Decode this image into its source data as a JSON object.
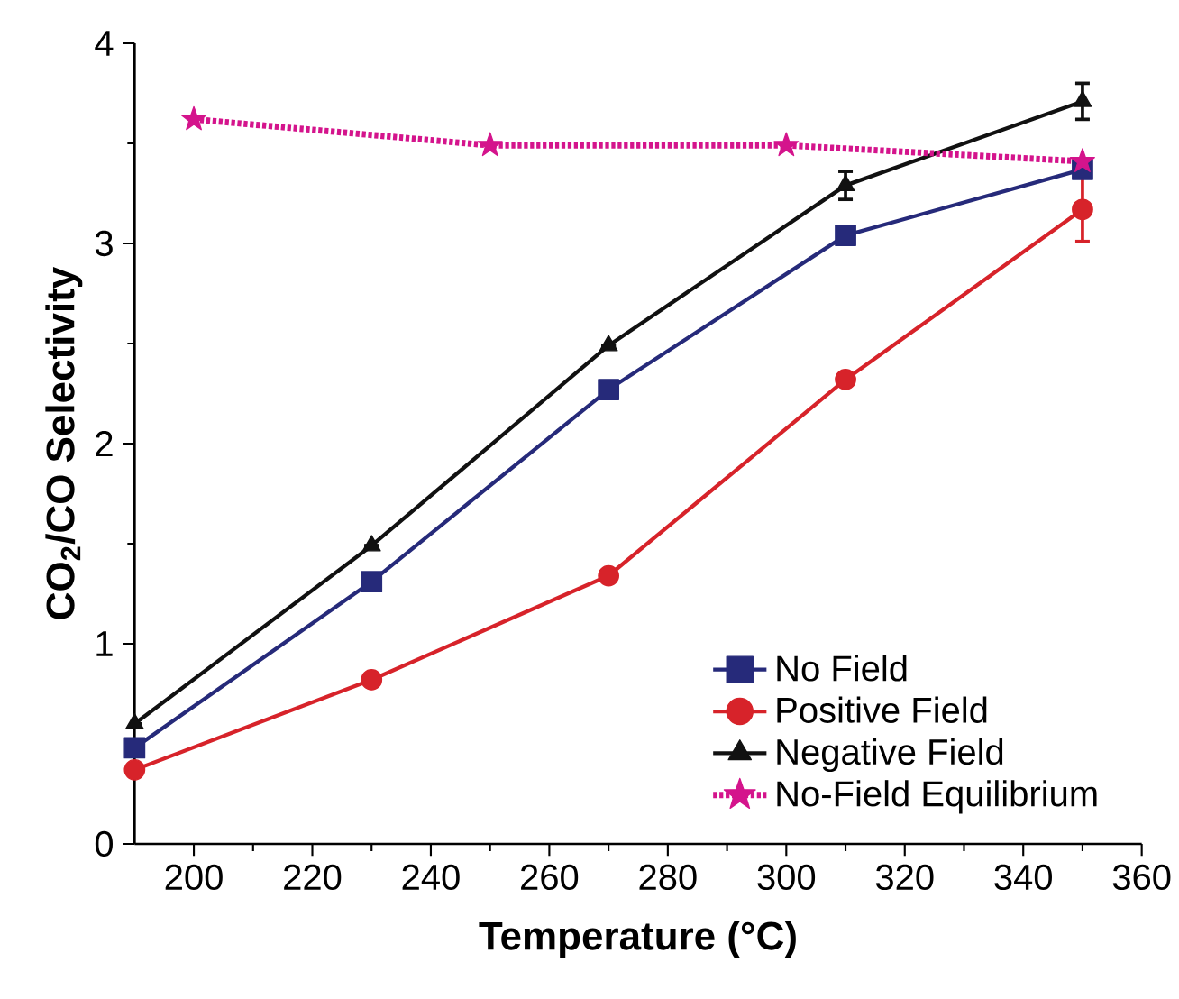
{
  "chart_data": {
    "type": "line",
    "xlabel": "Temperature (°C)",
    "ylabel": "CO$_{2}$/CO Selectivity",
    "xlim": [
      190,
      360
    ],
    "xticks": [
      200,
      220,
      240,
      260,
      280,
      300,
      320,
      340,
      360
    ],
    "ylim": [
      0,
      4
    ],
    "yticks": [
      0,
      1,
      2,
      3,
      4
    ],
    "grid": false,
    "legend": "bottom right",
    "series": [
      {
        "name": "No Field",
        "color": "#262a7a",
        "marker": "square",
        "line_style": "solid",
        "x": [
          190,
          230,
          270,
          310,
          350
        ],
        "values": [
          0.48,
          1.31,
          2.27,
          3.04,
          3.37
        ]
      },
      {
        "name": "Positive Field",
        "color": "#d7232a",
        "marker": "circle",
        "line_style": "solid",
        "x": [
          190,
          230,
          270,
          310,
          350
        ],
        "values": [
          0.37,
          0.82,
          1.34,
          2.32,
          3.17
        ],
        "errors": [
          null,
          null,
          null,
          null,
          0.16
        ]
      },
      {
        "name": "Negative Field",
        "color": "#111111",
        "marker": "triangle",
        "line_style": "solid",
        "x": [
          190,
          230,
          270,
          310,
          350
        ],
        "values": [
          0.6,
          1.49,
          2.49,
          3.29,
          3.71
        ],
        "errors": [
          null,
          null,
          null,
          0.07,
          0.09
        ]
      },
      {
        "name": "No-Field Equilibrium",
        "color": "#d4148c",
        "marker": "star",
        "line_style": "dotted",
        "x": [
          200,
          250,
          300,
          350
        ],
        "values": [
          3.62,
          3.49,
          3.49,
          3.41
        ]
      }
    ]
  }
}
